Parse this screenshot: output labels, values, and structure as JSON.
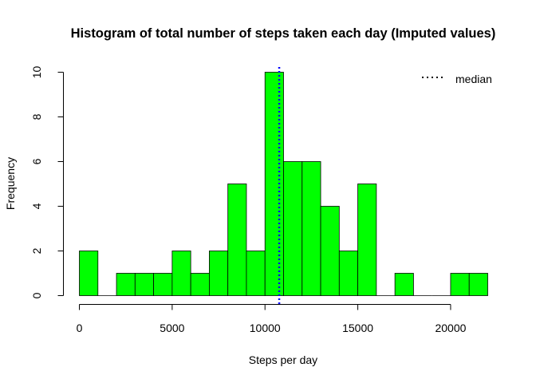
{
  "chart_data": {
    "type": "bar",
    "title": "Histogram of total number of steps taken each day (Imputed values)",
    "xlabel": "Steps per day",
    "ylabel": "Frequency",
    "xlim": [
      0,
      22000
    ],
    "ylim": [
      0,
      10
    ],
    "x_ticks": [
      0,
      5000,
      10000,
      15000,
      20000
    ],
    "y_ticks": [
      0,
      2,
      4,
      6,
      8,
      10
    ],
    "bin_width": 1000,
    "bins": [
      {
        "start": 0,
        "end": 1000,
        "count": 2
      },
      {
        "start": 1000,
        "end": 2000,
        "count": 0
      },
      {
        "start": 2000,
        "end": 3000,
        "count": 1
      },
      {
        "start": 3000,
        "end": 4000,
        "count": 1
      },
      {
        "start": 4000,
        "end": 5000,
        "count": 1
      },
      {
        "start": 5000,
        "end": 6000,
        "count": 2
      },
      {
        "start": 6000,
        "end": 7000,
        "count": 1
      },
      {
        "start": 7000,
        "end": 8000,
        "count": 2
      },
      {
        "start": 8000,
        "end": 9000,
        "count": 5
      },
      {
        "start": 9000,
        "end": 10000,
        "count": 2
      },
      {
        "start": 10000,
        "end": 11000,
        "count": 10
      },
      {
        "start": 11000,
        "end": 12000,
        "count": 6
      },
      {
        "start": 12000,
        "end": 13000,
        "count": 6
      },
      {
        "start": 13000,
        "end": 14000,
        "count": 4
      },
      {
        "start": 14000,
        "end": 15000,
        "count": 2
      },
      {
        "start": 15000,
        "end": 16000,
        "count": 5
      },
      {
        "start": 16000,
        "end": 17000,
        "count": 0
      },
      {
        "start": 17000,
        "end": 18000,
        "count": 1
      },
      {
        "start": 18000,
        "end": 19000,
        "count": 0
      },
      {
        "start": 19000,
        "end": 20000,
        "count": 0
      },
      {
        "start": 20000,
        "end": 21000,
        "count": 1
      },
      {
        "start": 21000,
        "end": 22000,
        "count": 1
      }
    ],
    "bar_color": "#00ff00",
    "bar_border_color": "#000000",
    "median": {
      "value": 10766,
      "color": "#0000ff",
      "style": "dotted",
      "label": "median"
    },
    "legend": {
      "position": "top-right",
      "entries": [
        {
          "label": "median",
          "style": "dotted",
          "color": "#000000"
        }
      ]
    },
    "grid": false
  }
}
